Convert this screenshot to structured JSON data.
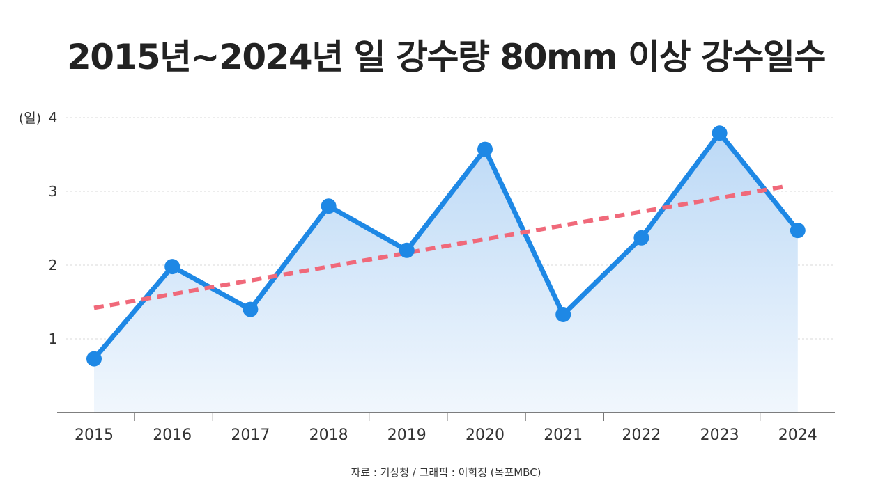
{
  "title": "2015년~2024년 일 강수량 80mm 이상 강수일수",
  "source": "자료 : 기상청 / 그래픽 : 이희정 (목포MBC)",
  "colors": {
    "line": "#1e88e5",
    "area_top": "#bcd9f6",
    "area_bottom": "#f1f7fd",
    "trend": "#f0697a",
    "grid": "#d8d8d8",
    "axis": "#555555",
    "text": "#333333"
  },
  "chart_data": {
    "type": "line",
    "categories": [
      "2015",
      "2016",
      "2017",
      "2018",
      "2019",
      "2020",
      "2021",
      "2022",
      "2023",
      "2024"
    ],
    "series": [
      {
        "values": [
          0.73,
          1.98,
          1.4,
          2.8,
          2.2,
          3.57,
          1.33,
          2.37,
          3.79,
          2.47
        ]
      }
    ],
    "trendline": {
      "start": 1.42,
      "end": 3.06
    },
    "ylabel": "(일)",
    "yticks": [
      1,
      2,
      3,
      4
    ],
    "ylim": [
      0,
      4
    ],
    "grid": true,
    "area_fill": true
  }
}
